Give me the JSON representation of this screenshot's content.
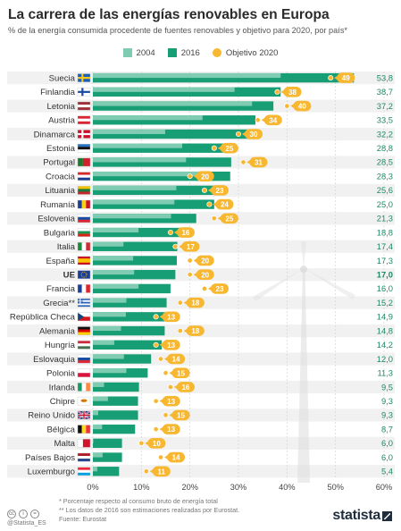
{
  "title": "La carrera de las energías renovables en Europa",
  "subtitle": "% de la energía consumida procedente de fuentes renovables y objetivo para 2020, por país*",
  "legend": [
    {
      "label": "2004",
      "color": "#7fccb2"
    },
    {
      "label": "2016",
      "color": "#189e74"
    },
    {
      "label": "Objetivo 2020",
      "color": "#f7b731"
    }
  ],
  "chart_data": {
    "type": "bar",
    "orientation": "horizontal",
    "title": "La carrera de las energías renovables en Europa",
    "subtitle": "% de la energía consumida procedente de fuentes renovables y objetivo para 2020, por país*",
    "xlim": [
      0,
      60
    ],
    "ticks": [
      "0%",
      "10%",
      "20%",
      "30%",
      "40%",
      "50%",
      "60%"
    ],
    "tick_values": [
      0,
      10,
      20,
      30,
      40,
      50,
      60
    ],
    "grid": true,
    "legend_position": "top-center",
    "categories": [
      "Suecia",
      "Finlandia",
      "Letonia",
      "Austria",
      "Dinamarca",
      "Estonia",
      "Portugal",
      "Croacia",
      "Lituania",
      "Rumanía",
      "Eslovenia",
      "Bulgaria",
      "Italia",
      "España",
      "UE",
      "Francia",
      "Grecia**",
      "República Checa",
      "Alemania",
      "Hungría",
      "Eslovaquia",
      "Polonia",
      "Irlanda",
      "Chipre",
      "Reino Unido",
      "Bélgica",
      "Malta",
      "Países Bajos",
      "Luxemburgo"
    ],
    "value_labels": [
      "53,8",
      "38,7",
      "37,2",
      "33,5",
      "32,2",
      "28,8",
      "28,5",
      "28,3",
      "25,6",
      "25,0",
      "21,3",
      "18,8",
      "17,4",
      "17,3",
      "17,0",
      "16,0",
      "15,2",
      "14,9",
      "14,8",
      "14,2",
      "12,0",
      "11,3",
      "9,5",
      "9,3",
      "9,3",
      "8,7",
      "6,0",
      "6,0",
      "5,4"
    ],
    "highlight": "UE",
    "series": [
      {
        "name": "2004",
        "color": "#7fccb2",
        "values": [
          38.7,
          29.2,
          32.8,
          22.6,
          14.9,
          18.4,
          19.2,
          23.5,
          17.2,
          16.8,
          16.1,
          9.4,
          6.3,
          8.3,
          8.5,
          9.4,
          6.9,
          6.8,
          5.8,
          4.4,
          6.4,
          6.9,
          2.3,
          3.1,
          1.1,
          1.9,
          0.1,
          2.0,
          0.9
        ]
      },
      {
        "name": "2016",
        "color": "#189e74",
        "values": [
          53.8,
          38.7,
          37.2,
          33.5,
          32.2,
          28.8,
          28.5,
          28.3,
          25.6,
          25.0,
          21.3,
          18.8,
          17.4,
          17.3,
          17.0,
          16.0,
          15.2,
          14.9,
          14.8,
          14.2,
          12.0,
          11.3,
          9.5,
          9.3,
          9.3,
          8.7,
          6.0,
          6.0,
          5.4
        ]
      },
      {
        "name": "Objetivo 2020",
        "color": "#f7b731",
        "values": [
          49,
          38,
          40,
          34,
          30,
          25,
          31,
          20,
          23,
          24,
          25,
          16,
          17,
          20,
          20,
          23,
          18,
          13,
          18,
          13,
          14,
          15,
          16,
          13,
          15,
          13,
          10,
          14,
          11
        ]
      }
    ]
  },
  "footnotes": [
    "*   Porcentaje respecto al consumo bruto de energía total",
    "** Los datos de 2016 son estimaciones realizadas por Eurostat.",
    "Fuente: Eurostat"
  ],
  "license": [
    "cc",
    "i",
    "="
  ],
  "handle": "@Statista_ES",
  "brand": "statista"
}
